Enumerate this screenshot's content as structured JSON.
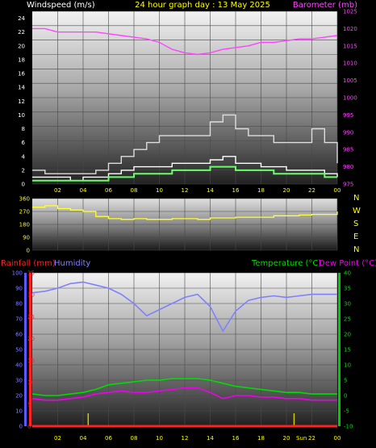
{
  "header": {
    "left_title": "Windspeed (m/s)",
    "center_title": "24 hour graph day : 13 May 2025",
    "right_title": "Barometer (mb)"
  },
  "wind_dir_letters": [
    "N",
    "W",
    "S",
    "E",
    "N"
  ],
  "bottom_header": {
    "rainfall_label": "Rainfall (mm)",
    "humidity_label": "Humidity",
    "temperature_label": "Temperature (°C)",
    "dewpoint_label": "Dew Point (°C)"
  },
  "sun_marker_label": "Sun",
  "time_ticks": [
    "02",
    "04",
    "06",
    "08",
    "10",
    "12",
    "14",
    "16",
    "18",
    "20",
    "22",
    "00"
  ],
  "colors": {
    "windspeed": "#ffffff",
    "gust": "#dddddd",
    "avg_wind": "#66ff66",
    "barometer": "#ff44ff",
    "wind_dir": "#ffff33",
    "humidity": "#8080ff",
    "temperature": "#00dd00",
    "dew_point": "#ee00ee",
    "rainfall": "#ff2222",
    "header_yellow": "#ffff00",
    "header_white": "#ffffff",
    "header_magenta": "#ff44ff"
  },
  "chart_data": [
    {
      "type": "line",
      "title": "24 hour graph day : 13 May 2025",
      "ylabel": "Windspeed (m/s)",
      "ylabel_right": "Barometer (mb)",
      "ylim": [
        0,
        25
      ],
      "ylim_right": [
        975,
        1025
      ],
      "y_ticks": [
        0,
        2,
        4,
        6,
        8,
        10,
        12,
        14,
        16,
        18,
        20,
        22,
        24
      ],
      "y_ticks_right": [
        975,
        980,
        985,
        990,
        995,
        1000,
        1005,
        1010,
        1015,
        1020,
        1025
      ],
      "x_hours": [
        0,
        1,
        2,
        3,
        4,
        5,
        6,
        7,
        8,
        9,
        10,
        11,
        12,
        13,
        14,
        15,
        16,
        17,
        18,
        19,
        20,
        21,
        22,
        23,
        24
      ],
      "series": [
        {
          "name": "Gust",
          "axis": "left",
          "values": [
            2,
            1.5,
            1.5,
            1.5,
            1.5,
            2,
            3,
            4,
            5,
            6,
            7,
            7,
            7,
            7,
            9,
            10,
            8,
            7,
            7,
            6,
            6,
            6,
            8,
            6,
            3
          ]
        },
        {
          "name": "Windspeed",
          "axis": "left",
          "values": [
            1,
            1,
            1,
            0.5,
            1,
            1,
            1.5,
            2,
            2.5,
            2.5,
            2.5,
            3,
            3,
            3,
            3.5,
            4,
            3,
            3,
            2.5,
            2.5,
            2,
            2,
            2,
            1.5,
            1
          ]
        },
        {
          "name": "Average",
          "axis": "left",
          "values": [
            0.5,
            0.5,
            0.5,
            0.5,
            0.5,
            0.5,
            1,
            1,
            1.5,
            1.5,
            1.5,
            2,
            2,
            2,
            2.5,
            2.5,
            2,
            2,
            2,
            1.5,
            1.5,
            1.5,
            1.5,
            1,
            1
          ]
        },
        {
          "name": "Barometer",
          "axis": "right",
          "values": [
            1020,
            1020,
            1019,
            1019,
            1019,
            1019,
            1018.5,
            1018,
            1017.5,
            1017,
            1016,
            1014,
            1013,
            1012.5,
            1013,
            1014,
            1014.5,
            1015,
            1016,
            1016,
            1016.5,
            1017,
            1017,
            1017.5,
            1018
          ]
        }
      ]
    },
    {
      "type": "line",
      "title": "",
      "ylabel": "",
      "ylim": [
        0,
        360
      ],
      "y_ticks": [
        0,
        90,
        180,
        270,
        360
      ],
      "x_hours": [
        0,
        1,
        2,
        3,
        4,
        5,
        6,
        7,
        8,
        9,
        10,
        11,
        12,
        13,
        14,
        15,
        16,
        17,
        18,
        19,
        20,
        21,
        22,
        23,
        24
      ],
      "series": [
        {
          "name": "Wind direction",
          "axis": "left",
          "values": [
            300,
            310,
            290,
            280,
            270,
            235,
            220,
            215,
            220,
            215,
            215,
            220,
            220,
            215,
            225,
            225,
            230,
            230,
            230,
            240,
            240,
            245,
            250,
            250,
            270
          ]
        }
      ]
    },
    {
      "type": "line",
      "title": "",
      "ylabel": "Humidity",
      "ylabel_left2": "Rainfall (mm)",
      "ylabel_right": "Temperature (°C)",
      "ylabel_right2": "Dew Point (°C)",
      "ylim": [
        0,
        100
      ],
      "ylim_rain": [
        0,
        35
      ],
      "ylim_right": [
        -10,
        40
      ],
      "y_ticks": [
        0,
        10,
        20,
        30,
        40,
        50,
        60,
        70,
        80,
        90,
        100
      ],
      "y_ticks_rain": [
        0,
        5,
        10,
        15,
        20,
        25,
        30,
        35
      ],
      "y_ticks_right": [
        -10,
        -5,
        0,
        5,
        10,
        15,
        20,
        25,
        30,
        35,
        40
      ],
      "x_hours": [
        0,
        1,
        2,
        3,
        4,
        5,
        6,
        7,
        8,
        9,
        10,
        11,
        12,
        13,
        14,
        15,
        16,
        17,
        18,
        19,
        20,
        21,
        22,
        23,
        24
      ],
      "series": [
        {
          "name": "Humidity",
          "axis": "left",
          "values": [
            87,
            88,
            90,
            93,
            94,
            92,
            90,
            86,
            80,
            72,
            76,
            80,
            84,
            86,
            78,
            62,
            75,
            82,
            84,
            85,
            84,
            85,
            86,
            86,
            86
          ]
        },
        {
          "name": "Temperature",
          "axis": "right",
          "values": [
            0.5,
            0,
            0,
            0.5,
            1,
            2,
            3.5,
            4,
            4.5,
            5,
            5,
            5.5,
            5.5,
            5.5,
            5,
            4,
            3,
            2.5,
            2,
            1.5,
            1,
            1,
            0.5,
            0.5,
            0.5
          ]
        },
        {
          "name": "Dew Point",
          "axis": "right",
          "values": [
            -1,
            -1.5,
            -1.5,
            -1,
            -0.5,
            0.5,
            1,
            1.5,
            1,
            1,
            1.5,
            2,
            2.5,
            2.5,
            1,
            -1,
            0,
            0,
            -0.5,
            -0.5,
            -1,
            -1,
            -1.5,
            -1.5,
            -1.5
          ]
        },
        {
          "name": "Rainfall",
          "axis": "rain",
          "values": [
            0,
            0,
            0,
            0,
            0,
            0,
            0,
            0,
            0,
            0,
            0,
            0,
            0,
            0,
            0,
            0,
            0,
            0,
            0,
            0,
            0,
            0,
            0,
            0,
            0
          ]
        }
      ]
    }
  ]
}
